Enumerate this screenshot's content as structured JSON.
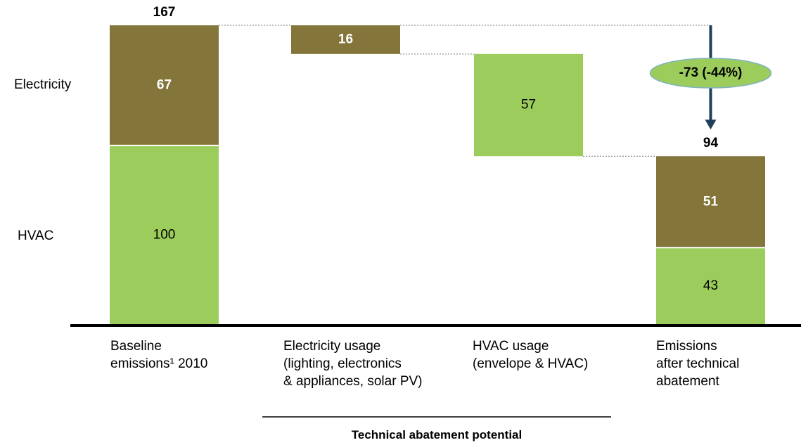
{
  "chart_data": {
    "type": "bar",
    "subtype": "waterfall",
    "ylim": [
      0,
      175
    ],
    "grid": false,
    "components": [
      "HVAC",
      "Electricity"
    ],
    "colors": {
      "HVAC": "#9ccd5c",
      "Electricity": "#84763a",
      "arrow": "#1f3f5a",
      "ellipse": "#9ccd5c"
    },
    "bars": [
      {
        "category": "Baseline emissions¹ 2010",
        "label_lines": [
          "Baseline",
          "emissions¹ 2010"
        ],
        "kind": "stack",
        "segments": [
          {
            "component": "HVAC",
            "value": 100,
            "label": "100",
            "bold": false
          },
          {
            "component": "Electricity",
            "value": 67,
            "label": "67",
            "bold": true
          }
        ],
        "total": "167"
      },
      {
        "category": "Electricity usage (lighting, electronics & appliances, solar PV)",
        "label_lines": [
          "Electricity usage",
          "(lighting, electronics",
          "& appliances, solar PV)"
        ],
        "kind": "delta",
        "component": "Electricity",
        "start": 167,
        "value": -16,
        "label": "16",
        "bold": true
      },
      {
        "category": "HVAC usage (envelope & HVAC)",
        "label_lines": [
          "HVAC usage",
          "(envelope & HVAC)"
        ],
        "kind": "delta",
        "component": "HVAC",
        "start": 151,
        "value": -57,
        "label": "57",
        "bold": false
      },
      {
        "category": "Emissions after technical abatement",
        "label_lines": [
          "Emissions",
          "after technical",
          "abatement"
        ],
        "kind": "stack",
        "segments": [
          {
            "component": "HVAC",
            "value": 43,
            "label": "43",
            "bold": false
          },
          {
            "component": "Electricity",
            "value": 51,
            "label": "51",
            "bold": true
          }
        ],
        "total": "94"
      }
    ],
    "row_labels": {
      "Electricity": "Electricity",
      "HVAC": "HVAC"
    },
    "change_annotation": {
      "from": 167,
      "to": 94,
      "text": "-73 (-44%)"
    },
    "group_label": "Technical abatement potential"
  }
}
